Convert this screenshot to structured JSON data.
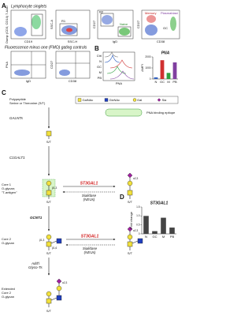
{
  "panel_a": {
    "label": "A",
    "title": "Lymphocyte singlets",
    "plots": [
      {
        "y_label": "Dump (CD3, CD14) 7-AAD",
        "x_label": "CD19"
      },
      {
        "y_label": "SSC-A",
        "x_label": "SSC-H",
        "gate": "R1"
      },
      {
        "y_label": "CD27",
        "x_label": "IgD",
        "gate": "R2",
        "population": "Naive"
      },
      {
        "y_label": "CD27",
        "x_label": "CD38",
        "populations": [
          "Plasmablast",
          "Memory",
          "GC"
        ]
      }
    ],
    "fmo_title": "Fluorescence minus one (FMO) gating controls",
    "fmo_plots": [
      {
        "y_label": "PNA",
        "x_label": "IgD"
      },
      {
        "y_label": "CD27",
        "x_label": "CD38"
      }
    ]
  },
  "panel_b": {
    "label": "B",
    "histogram_labels": [
      "Ctrl",
      "N",
      "GC",
      "M",
      "PB"
    ],
    "histogram_x_label": "PNA",
    "chart_data": {
      "type": "bar",
      "title": "PNA",
      "y_label": "ΔMFI",
      "categories": [
        "N",
        "GC",
        "M",
        "PB"
      ],
      "values": [
        150,
        1700,
        550,
        1500
      ],
      "colors": [
        "#3060c0",
        "#d03030",
        "#30a040",
        "#8040a0"
      ],
      "ylim": [
        0,
        2000
      ],
      "yticks": [
        0,
        1000,
        2000
      ]
    }
  },
  "panel_c": {
    "label": "C",
    "intro": [
      "Polypeptide",
      "Serine or Threonine (S/T)"
    ],
    "legend": [
      "GalNAc",
      "GlcNAc",
      "Gal",
      "Sia"
    ],
    "epitope": "PNA binding epitope",
    "site": "S/T",
    "enzymes": {
      "galnts": "GALNTs",
      "c1galt1": "C1GALT1",
      "st3gal1": "ST3GAL1",
      "gcnt1": "GCNT1",
      "sialidase": [
        "Sialidase",
        "(NEUs)"
      ],
      "addl": [
        "Add'l",
        "Glyco-Ts"
      ]
    },
    "core1": [
      "Core 1",
      "O-glycan;",
      "\"T-antigen\""
    ],
    "core2": [
      "Core 2",
      "O-glycan"
    ],
    "extended": [
      "Extended",
      "Core 2",
      "O-glycan"
    ],
    "linkages": {
      "b13": "β1,3",
      "b16": "β1,6",
      "a23": "α2,3"
    }
  },
  "panel_d": {
    "label": "D",
    "chart_data": {
      "type": "bar",
      "title": "ST3GAL1",
      "y_label": "Fold change",
      "categories": [
        "N",
        "GC",
        "M",
        "PB"
      ],
      "values": [
        1,
        0.15,
        0.9,
        0.35
      ],
      "colors": [
        "#444444",
        "#444444",
        "#444444",
        "#444444"
      ],
      "ylim": [
        0,
        1.5
      ],
      "yticks": [
        0,
        0.5,
        {
          "value": 1,
          "label": "1.0"
        },
        1.5
      ]
    }
  }
}
